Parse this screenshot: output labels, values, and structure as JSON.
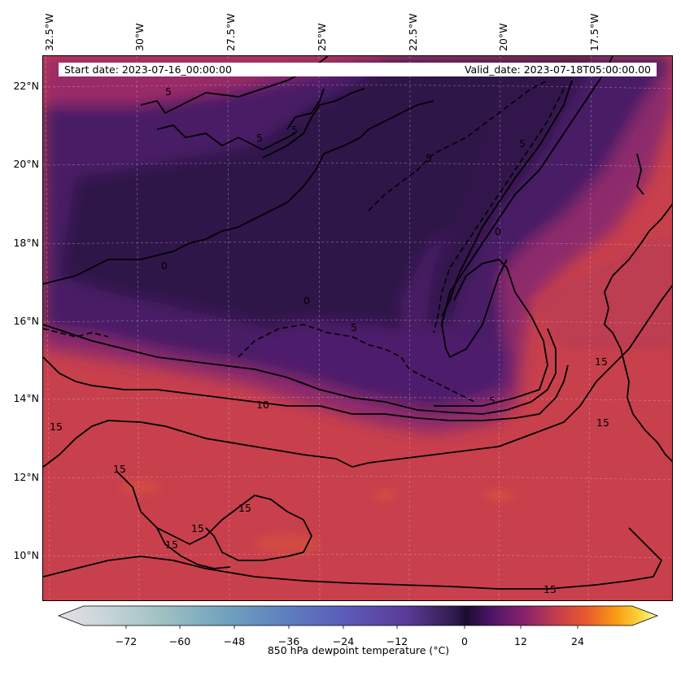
{
  "map": {
    "lon_labels": [
      "32.5°W",
      "30°W",
      "27.5°W",
      "25°W",
      "22.5°W",
      "20°W",
      "17.5°W"
    ],
    "lat_labels": [
      "22°N",
      "20°N",
      "18°N",
      "16°N",
      "14°N",
      "12°N",
      "10°N"
    ],
    "start_date": "Start date: 2023-07-16_00:00:00",
    "valid_date": "Valid_date: 2023-07-18T05:00:00.00",
    "contour_labels": [
      "5",
      "5",
      "5",
      "5",
      "0",
      "0",
      "0",
      "5",
      "5",
      "10",
      "5",
      "15",
      "15",
      "15",
      "15",
      "15",
      "15",
      "15",
      "15"
    ]
  },
  "colorbar": {
    "ticks": [
      "−72",
      "−60",
      "−48",
      "−36",
      "−24",
      "−12",
      "0",
      "12",
      "24"
    ],
    "title": "850 hPa dewpoint temperature ($^\\circ$C)",
    "title_display": "850 hPa dewpoint temperature (°C)"
  },
  "colors": {
    "dry_dark": "#2c1147",
    "dry_mid": "#3f1a5e",
    "purple": "#5a1f6e",
    "magenta": "#8a2a6e",
    "red": "#c13e4c",
    "red_orange": "#cf4a44"
  }
}
